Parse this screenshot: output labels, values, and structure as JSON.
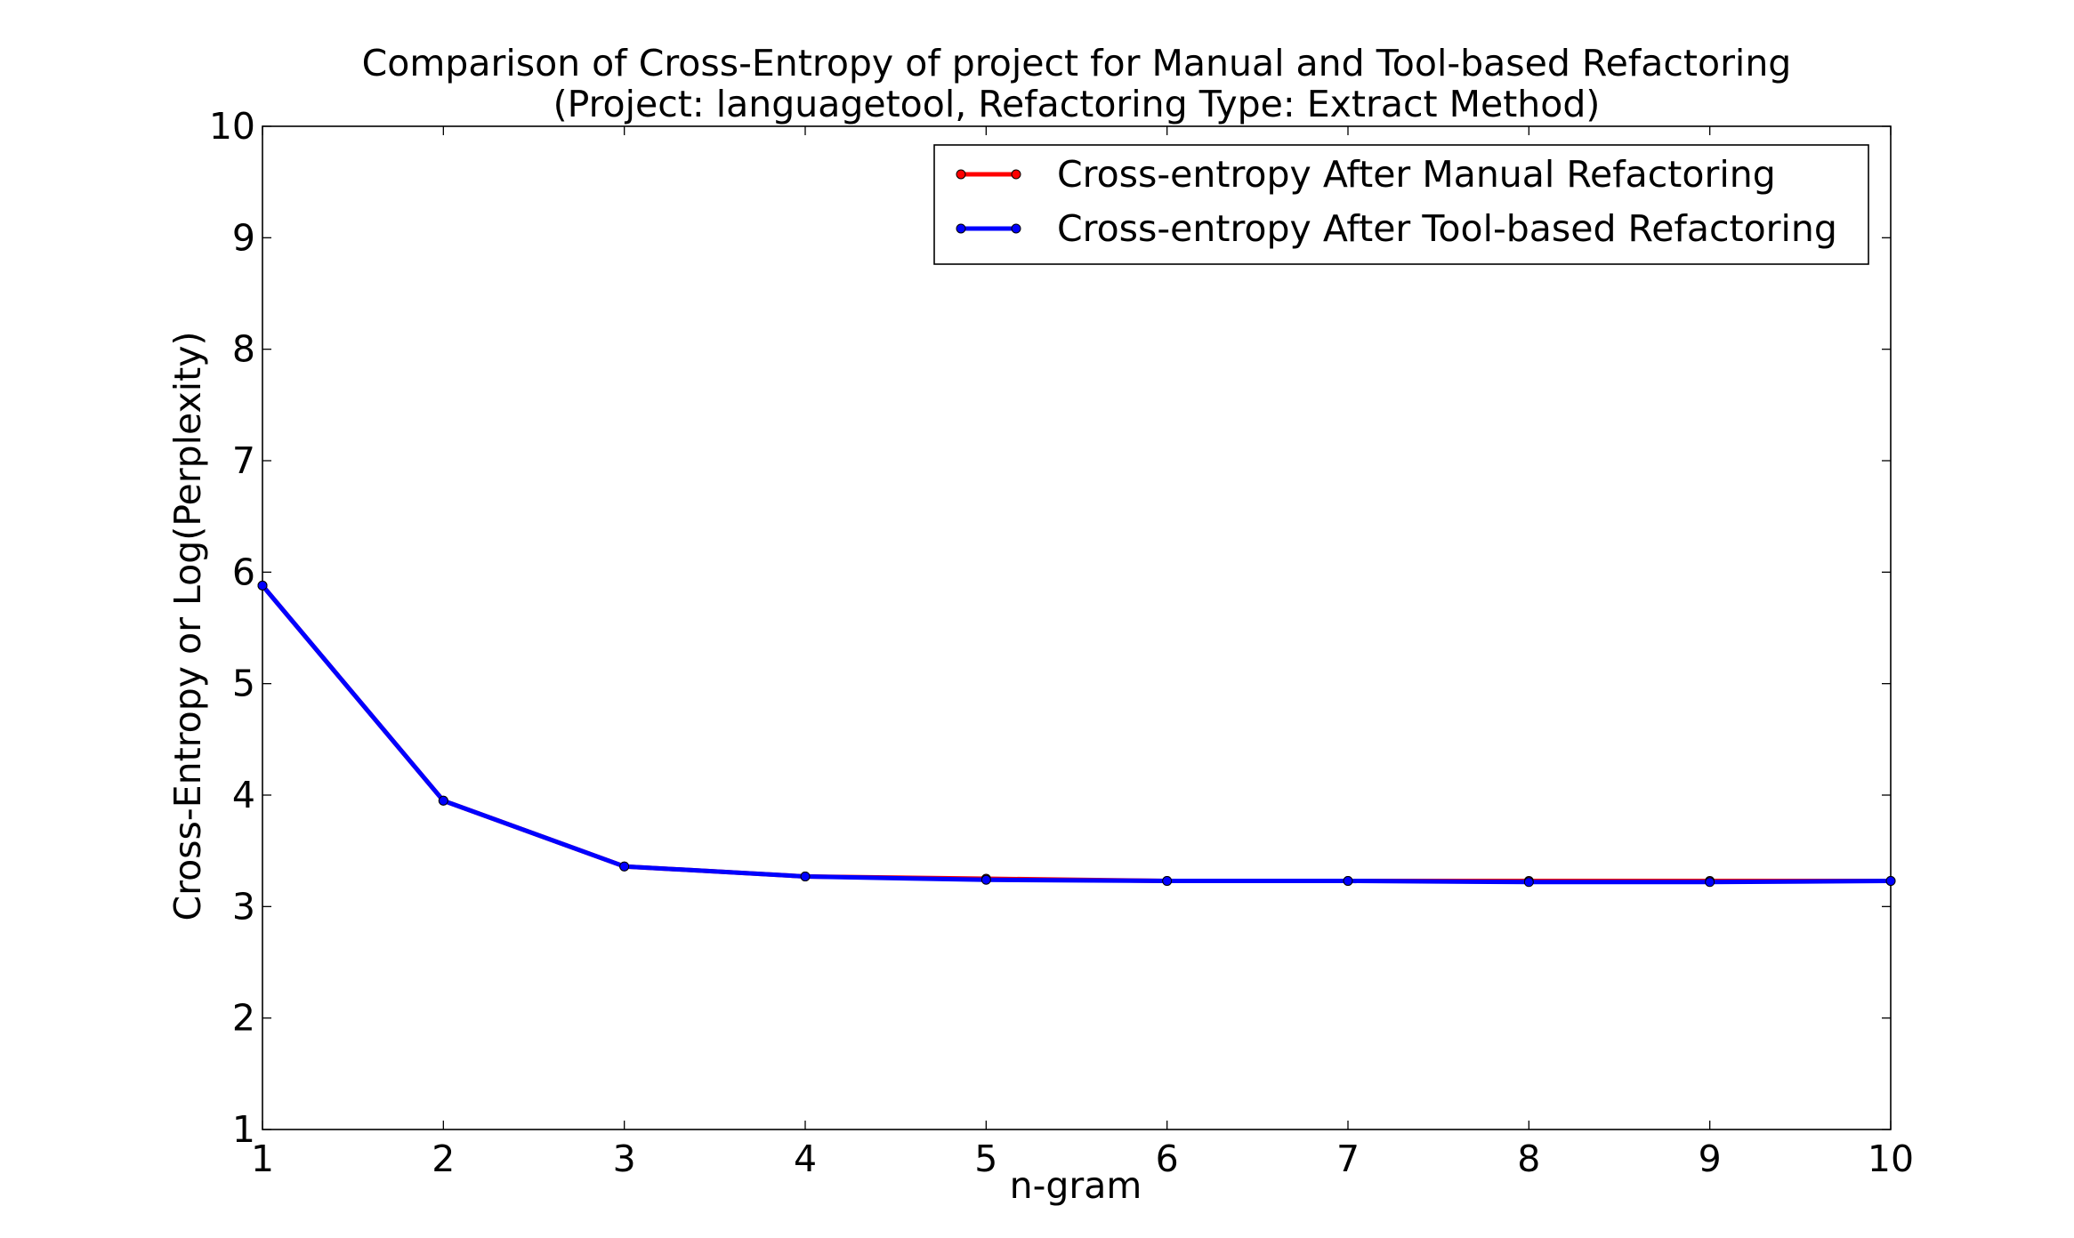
{
  "chart_data": {
    "type": "line",
    "title": "Comparison of Cross-Entropy of project for Manual and Tool-based Refactoring",
    "subtitle": "(Project: languagetool, Refactoring Type: Extract Method)",
    "xlabel": "n-gram",
    "ylabel": "Cross-Entropy or Log(Perplexity)",
    "xlim": [
      1,
      10
    ],
    "ylim": [
      1,
      10
    ],
    "xticks": [
      1,
      2,
      3,
      4,
      5,
      6,
      7,
      8,
      9,
      10
    ],
    "yticks": [
      1,
      2,
      3,
      4,
      5,
      6,
      7,
      8,
      9,
      10
    ],
    "grid": false,
    "legend_position": "top-right",
    "x": [
      1,
      2,
      3,
      4,
      5,
      6,
      7,
      8,
      9,
      10
    ],
    "series": [
      {
        "name": "Cross-entropy After Manual Refactoring",
        "color": "#ff0000",
        "values": [
          5.88,
          3.95,
          3.36,
          3.27,
          3.25,
          3.23,
          3.23,
          3.23,
          3.23,
          3.23
        ]
      },
      {
        "name": "Cross-entropy After Tool-based Refactoring",
        "color": "#0000ff",
        "values": [
          5.88,
          3.95,
          3.36,
          3.27,
          3.24,
          3.23,
          3.23,
          3.22,
          3.22,
          3.23
        ]
      }
    ]
  }
}
